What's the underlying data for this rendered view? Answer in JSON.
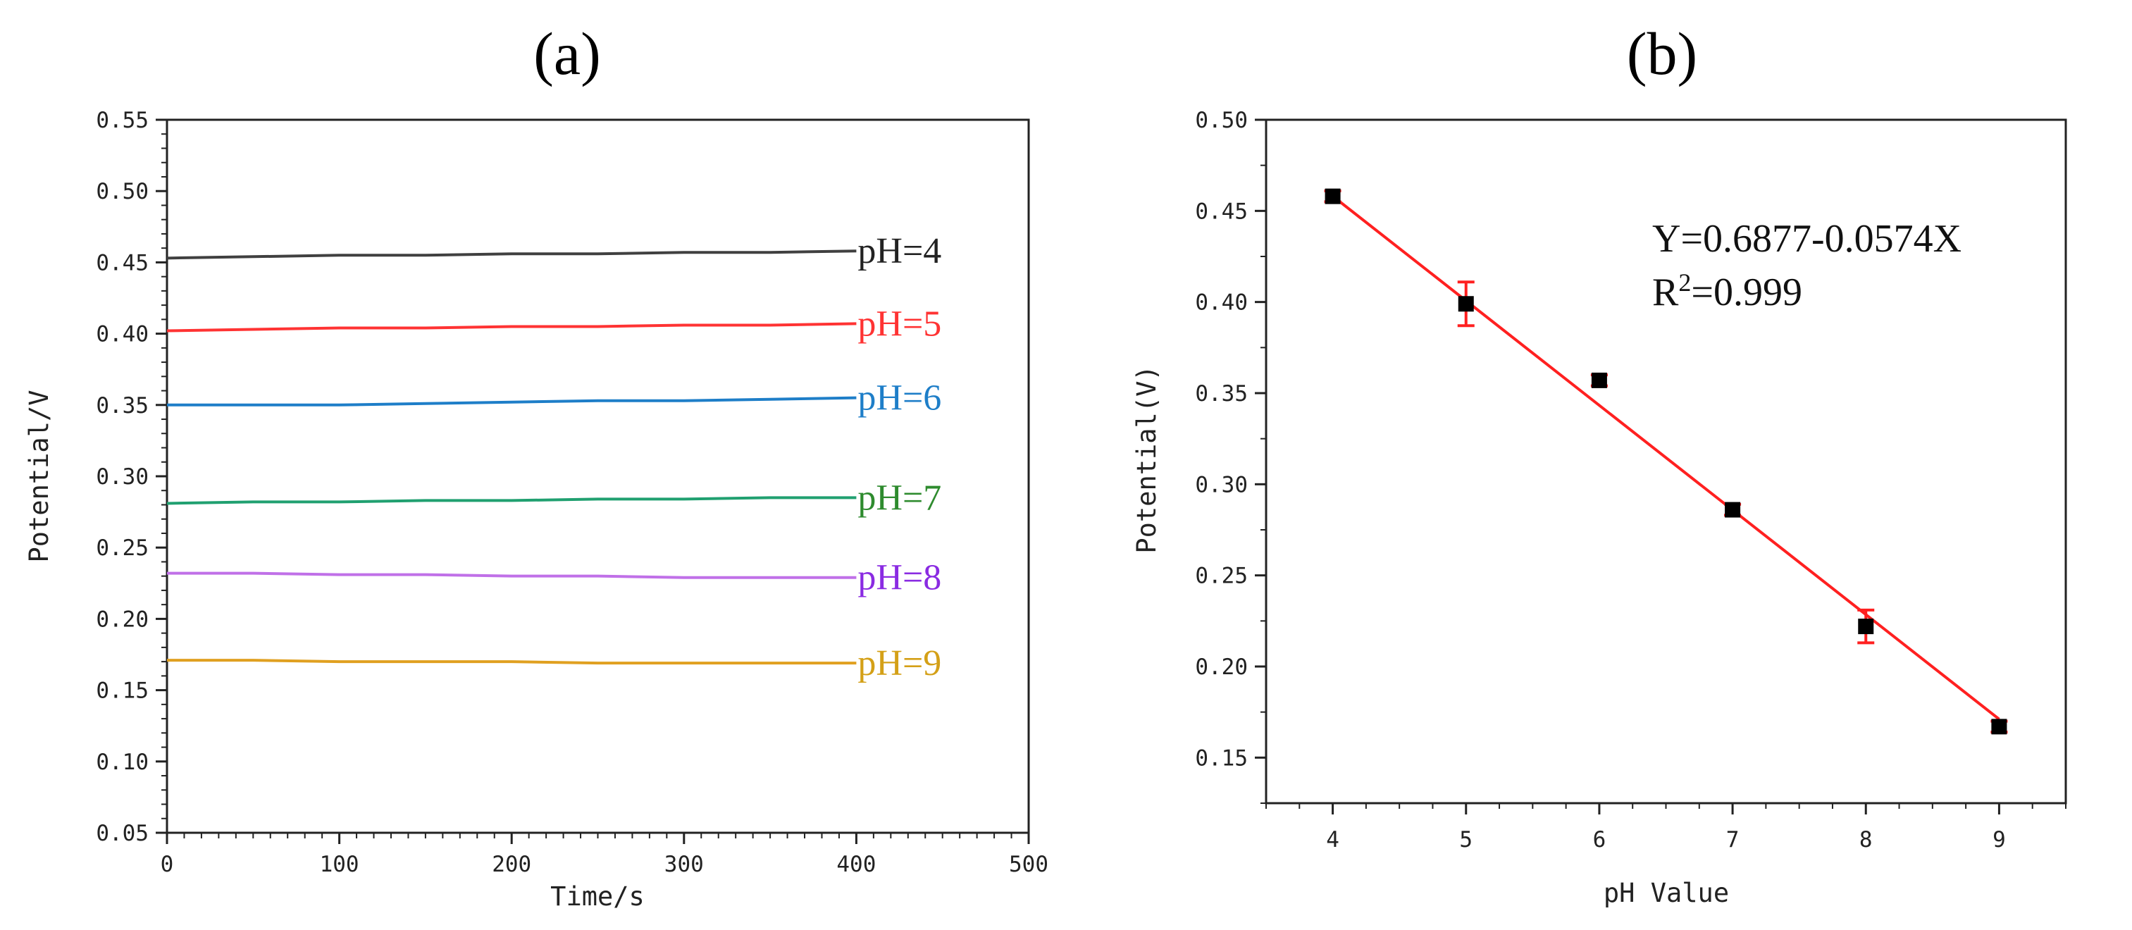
{
  "chart_data": [
    {
      "type": "line",
      "panel_label": "(a)",
      "title": "",
      "xlabel": "Time/s",
      "ylabel": "Potential/V",
      "xlim": [
        0,
        500
      ],
      "ylim": [
        0.05,
        0.55
      ],
      "xticks": [
        "0",
        "100",
        "200",
        "300",
        "400",
        "500"
      ],
      "yticks": [
        "0.05",
        "0.10",
        "0.15",
        "0.20",
        "0.25",
        "0.30",
        "0.35",
        "0.40",
        "0.45",
        "0.50",
        "0.55"
      ],
      "grid": false,
      "series": [
        {
          "name": "pH=4",
          "color": "#404040",
          "x": [
            0,
            50,
            100,
            150,
            200,
            250,
            300,
            350,
            400
          ],
          "y": [
            0.453,
            0.454,
            0.455,
            0.455,
            0.456,
            0.456,
            0.457,
            0.457,
            0.458
          ]
        },
        {
          "name": "pH=5",
          "color": "#ff3333",
          "x": [
            0,
            50,
            100,
            150,
            200,
            250,
            300,
            350,
            400
          ],
          "y": [
            0.402,
            0.403,
            0.404,
            0.404,
            0.405,
            0.405,
            0.406,
            0.406,
            0.407
          ]
        },
        {
          "name": "pH=6",
          "color": "#1e7ec8",
          "x": [
            0,
            50,
            100,
            150,
            200,
            250,
            300,
            350,
            400
          ],
          "y": [
            0.35,
            0.35,
            0.35,
            0.351,
            0.352,
            0.353,
            0.353,
            0.354,
            0.355
          ]
        },
        {
          "name": "pH=7",
          "color": "#20a070",
          "x": [
            0,
            50,
            100,
            150,
            200,
            250,
            300,
            350,
            400
          ],
          "y": [
            0.281,
            0.282,
            0.282,
            0.283,
            0.283,
            0.284,
            0.284,
            0.285,
            0.285
          ]
        },
        {
          "name": "pH=8",
          "color": "#c070e8",
          "x": [
            0,
            50,
            100,
            150,
            200,
            250,
            300,
            350,
            400
          ],
          "y": [
            0.232,
            0.232,
            0.231,
            0.231,
            0.23,
            0.23,
            0.229,
            0.229,
            0.229
          ]
        },
        {
          "name": "pH=9",
          "color": "#e0a020",
          "x": [
            0,
            50,
            100,
            150,
            200,
            250,
            300,
            350,
            400
          ],
          "y": [
            0.171,
            0.171,
            0.17,
            0.17,
            0.17,
            0.169,
            0.169,
            0.169,
            0.169
          ]
        }
      ],
      "series_label_colors": [
        "#222222",
        "#ff3333",
        "#1e7ec8",
        "#2e8b2e",
        "#8a2be2",
        "#d4a017"
      ]
    },
    {
      "type": "scatter",
      "panel_label": "(b)",
      "title": "",
      "xlabel": "pH Value",
      "ylabel": "Potential(V)",
      "xlim": [
        3.5,
        9.5
      ],
      "ylim": [
        0.125,
        0.5
      ],
      "xticks": [
        "4",
        "5",
        "6",
        "7",
        "8",
        "9"
      ],
      "yticks": [
        "0.15",
        "0.20",
        "0.25",
        "0.30",
        "0.35",
        "0.40",
        "0.45",
        "0.50"
      ],
      "grid": false,
      "points": {
        "x": [
          4,
          5,
          6,
          7,
          8,
          9
        ],
        "y": [
          0.458,
          0.399,
          0.357,
          0.286,
          0.222,
          0.167
        ],
        "err": [
          0.003,
          0.012,
          0.003,
          0.003,
          0.009,
          0.003
        ],
        "color": "#000000",
        "error_color": "#ff2020"
      },
      "fit": {
        "intercept": 0.6877,
        "slope": -0.0574,
        "x_range": [
          4,
          9
        ],
        "color": "#ff2020"
      },
      "annotations": {
        "equation": "Y=0.6877-0.0574X",
        "r2_prefix": "R",
        "r2_sup": "2",
        "r2_suffix": "=0.999"
      }
    }
  ]
}
